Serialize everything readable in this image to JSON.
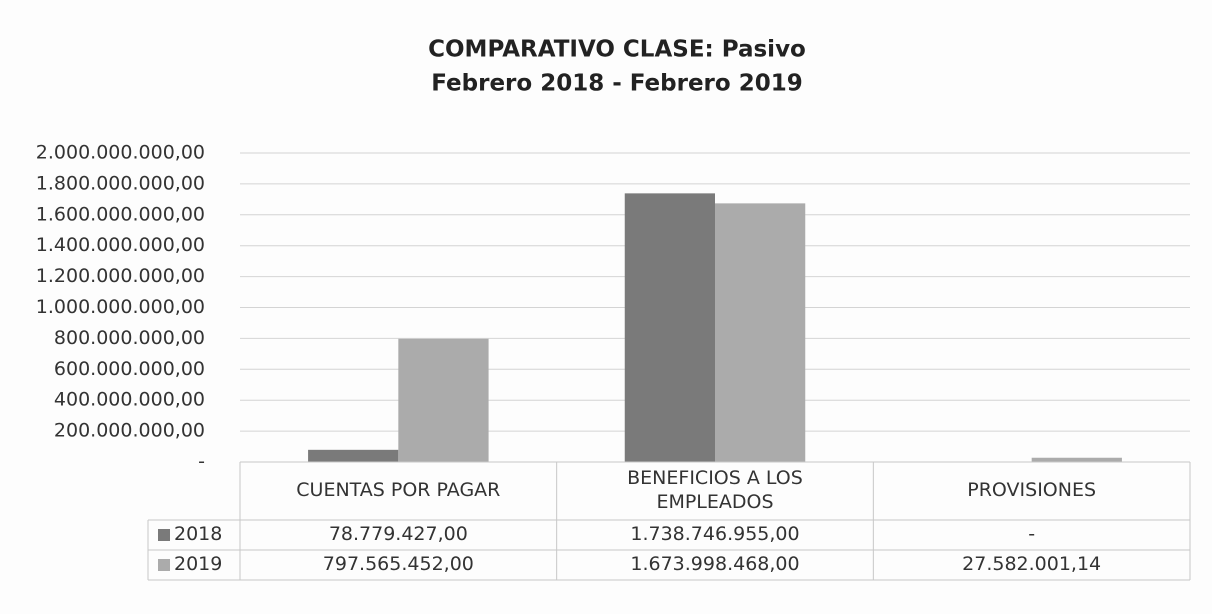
{
  "chart_data": {
    "type": "bar",
    "title": "COMPARATIVO CLASE: Pasivo",
    "subtitle": "Febrero 2018 - Febrero 2019",
    "categories": [
      "CUENTAS POR PAGAR",
      "BENEFICIOS A LOS EMPLEADOS",
      "PROVISIONES"
    ],
    "series": [
      {
        "name": "2018",
        "color": "#7a7a7a",
        "values": [
          78779427.0,
          1738746955.0,
          0
        ],
        "value_labels": [
          "78.779.427,00",
          "1.738.746.955,00",
          "-"
        ]
      },
      {
        "name": "2019",
        "color": "#ababab",
        "values": [
          797565452.0,
          1673998468.0,
          27582001.14
        ],
        "value_labels": [
          "797.565.452,00",
          "1.673.998.468,00",
          "27.582.001,14"
        ]
      }
    ],
    "ylim": [
      0,
      2000000000
    ],
    "yticks": [
      {
        "value": 0,
        "label": "-"
      },
      {
        "value": 200000000,
        "label": "200.000.000,00"
      },
      {
        "value": 400000000,
        "label": "400.000.000,00"
      },
      {
        "value": 600000000,
        "label": "600.000.000,00"
      },
      {
        "value": 800000000,
        "label": "800.000.000,00"
      },
      {
        "value": 1000000000,
        "label": "1.000.000.000,00"
      },
      {
        "value": 1200000000,
        "label": "1.200.000.000,00"
      },
      {
        "value": 1400000000,
        "label": "1.400.000.000,00"
      },
      {
        "value": 1600000000,
        "label": "1.600.000.000,00"
      },
      {
        "value": 1800000000,
        "label": "1.800.000.000,00"
      },
      {
        "value": 2000000000,
        "label": "2.000.000.000,00"
      }
    ],
    "grid": true,
    "data_table": true
  }
}
